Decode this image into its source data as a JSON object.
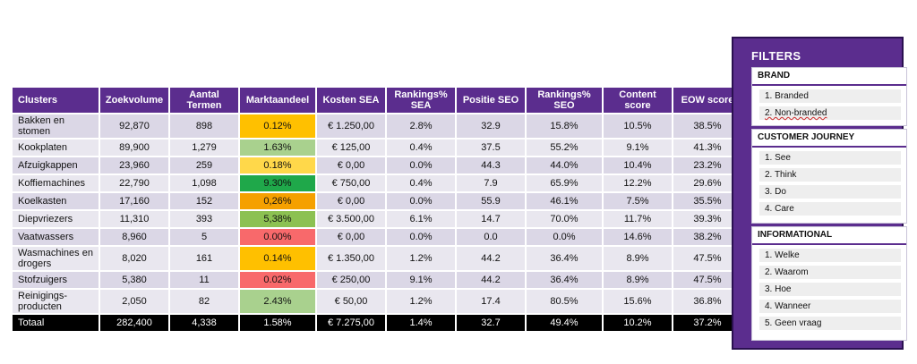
{
  "table": {
    "headers": [
      "Clusters",
      "Zoekvolume",
      "Aantal Termen",
      "Marktaandeel",
      "Kosten SEA",
      "Rankings% SEA",
      "Positie SEO",
      "Rankings% SEO",
      "Content score",
      "EOW score"
    ],
    "rows": [
      {
        "cluster": "Bakken en stomen",
        "zoekvolume": "92,870",
        "termen": "898",
        "marktaandeel": "0.12%",
        "share_color": "#ffc000",
        "kosten": "€ 1.250,00",
        "rank_sea": "2.8%",
        "positie_seo": "32.9",
        "rank_seo": "15.8%",
        "content": "10.5%",
        "eow": "38.5%"
      },
      {
        "cluster": "Kookplaten",
        "zoekvolume": "89,900",
        "termen": "1,279",
        "marktaandeel": "1.63%",
        "share_color": "#a9d18e",
        "kosten": "€ 125,00",
        "rank_sea": "0.4%",
        "positie_seo": "37.5",
        "rank_seo": "55.2%",
        "content": "9.1%",
        "eow": "41.3%"
      },
      {
        "cluster": "Afzuigkappen",
        "zoekvolume": "23,960",
        "termen": "259",
        "marktaandeel": "0.18%",
        "share_color": "#ffd84a",
        "kosten": "€ 0,00",
        "rank_sea": "0.0%",
        "positie_seo": "44.3",
        "rank_seo": "44.0%",
        "content": "10.4%",
        "eow": "23.2%"
      },
      {
        "cluster": "Koffiemachines",
        "zoekvolume": "22,790",
        "termen": "1,098",
        "marktaandeel": "9.30%",
        "share_color": "#1fa84a",
        "kosten": "€ 750,00",
        "rank_sea": "0.4%",
        "positie_seo": "7.9",
        "rank_seo": "65.9%",
        "content": "12.2%",
        "eow": "29.6%"
      },
      {
        "cluster": "Koelkasten",
        "zoekvolume": "17,160",
        "termen": "152",
        "marktaandeel": "0,26%",
        "share_color": "#f5a000",
        "kosten": "€ 0,00",
        "rank_sea": "0.0%",
        "positie_seo": "55.9",
        "rank_seo": "46.1%",
        "content": "7.5%",
        "eow": "35.5%"
      },
      {
        "cluster": "Diepvriezers",
        "zoekvolume": "11,310",
        "termen": "393",
        "marktaandeel": "5,38%",
        "share_color": "#8cc152",
        "kosten": "€ 3.500,00",
        "rank_sea": "6.1%",
        "positie_seo": "14.7",
        "rank_seo": "70.0%",
        "content": "11.7%",
        "eow": "39.3%"
      },
      {
        "cluster": "Vaatwassers",
        "zoekvolume": "8,960",
        "termen": "5",
        "marktaandeel": "0.00%",
        "share_color": "#f8696b",
        "kosten": "€ 0,00",
        "rank_sea": "0.0%",
        "positie_seo": "0.0",
        "rank_seo": "0.0%",
        "content": "14.6%",
        "eow": "38.2%"
      },
      {
        "cluster": "Wasmachines en drogers",
        "zoekvolume": "8,020",
        "termen": "161",
        "marktaandeel": "0.14%",
        "share_color": "#ffc000",
        "kosten": "€ 1.350,00",
        "rank_sea": "1.2%",
        "positie_seo": "44.2",
        "rank_seo": "36.4%",
        "content": "8.9%",
        "eow": "47.5%"
      },
      {
        "cluster": "Stofzuigers",
        "zoekvolume": "5,380",
        "termen": "11",
        "marktaandeel": "0.02%",
        "share_color": "#f8696b",
        "kosten": "€ 250,00",
        "rank_sea": "9.1%",
        "positie_seo": "44.2",
        "rank_seo": "36.4%",
        "content": "8.9%",
        "eow": "47.5%"
      },
      {
        "cluster": "Reinigings-producten",
        "zoekvolume": "2,050",
        "termen": "82",
        "marktaandeel": "2.43%",
        "share_color": "#a9d18e",
        "kosten": "€ 50,00",
        "rank_sea": "1.2%",
        "positie_seo": "17.4",
        "rank_seo": "80.5%",
        "content": "15.6%",
        "eow": "36.8%"
      }
    ],
    "total": {
      "cluster": "Totaal",
      "zoekvolume": "282,400",
      "termen": "4,338",
      "marktaandeel": "1.58%",
      "kosten": "€ 7.275,00",
      "rank_sea": "1.4%",
      "positie_seo": "32.7",
      "rank_seo": "49.4%",
      "content": "10.2%",
      "eow": "37.2%"
    }
  },
  "filters": {
    "title": "FILTERS",
    "groups": [
      {
        "title": "BRAND",
        "options": [
          "1. Branded",
          "2. Non-branded"
        ]
      },
      {
        "title": "CUSTOMER JOURNEY",
        "options": [
          "1. See",
          "2. Think",
          "3. Do",
          "4. Care"
        ]
      },
      {
        "title": "INFORMATIONAL",
        "options": [
          "1. Welke",
          "2. Waarom",
          "3. Hoe",
          "4. Wanneer",
          "5. Geen vraag"
        ]
      }
    ]
  },
  "colors": {
    "accent": "#5b2d8e",
    "row_light": "#e9e7ef",
    "row_dark": "#dbd7e6",
    "total": "#000000"
  }
}
